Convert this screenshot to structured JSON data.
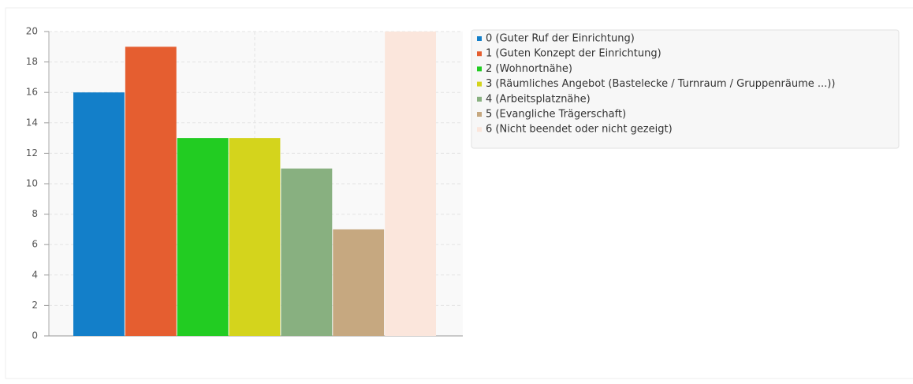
{
  "chart_data": {
    "type": "bar",
    "series": [
      {
        "name": "0 (Guter Ruf der Einrichtung)",
        "color": "#137fc9",
        "values": [
          16
        ]
      },
      {
        "name": "1 (Guten Konzept der Einrichtung)",
        "color": "#e55e30",
        "values": [
          19
        ]
      },
      {
        "name": "2 (Wohnortnähe)",
        "color": "#22cc22",
        "values": [
          13
        ]
      },
      {
        "name": "3 (Räumliches Angebot (Bastelecke / Turnraum / Gruppenräume ...))",
        "color": "#d4d41c",
        "values": [
          13
        ]
      },
      {
        "name": "4 (Arbeitsplatznähe)",
        "color": "#88b080",
        "values": [
          11
        ]
      },
      {
        "name": "5 (Evangliche Trägerschaft)",
        "color": "#c6a880",
        "values": [
          7
        ]
      },
      {
        "name": "6 (Nicht beendet oder nicht gezeigt)",
        "color": "#fbe6dc",
        "values": [
          20
        ]
      }
    ],
    "ylim": [
      0,
      20
    ],
    "yticks": [
      0,
      2,
      4,
      6,
      8,
      10,
      12,
      14,
      16,
      18,
      20
    ],
    "grid": true
  }
}
